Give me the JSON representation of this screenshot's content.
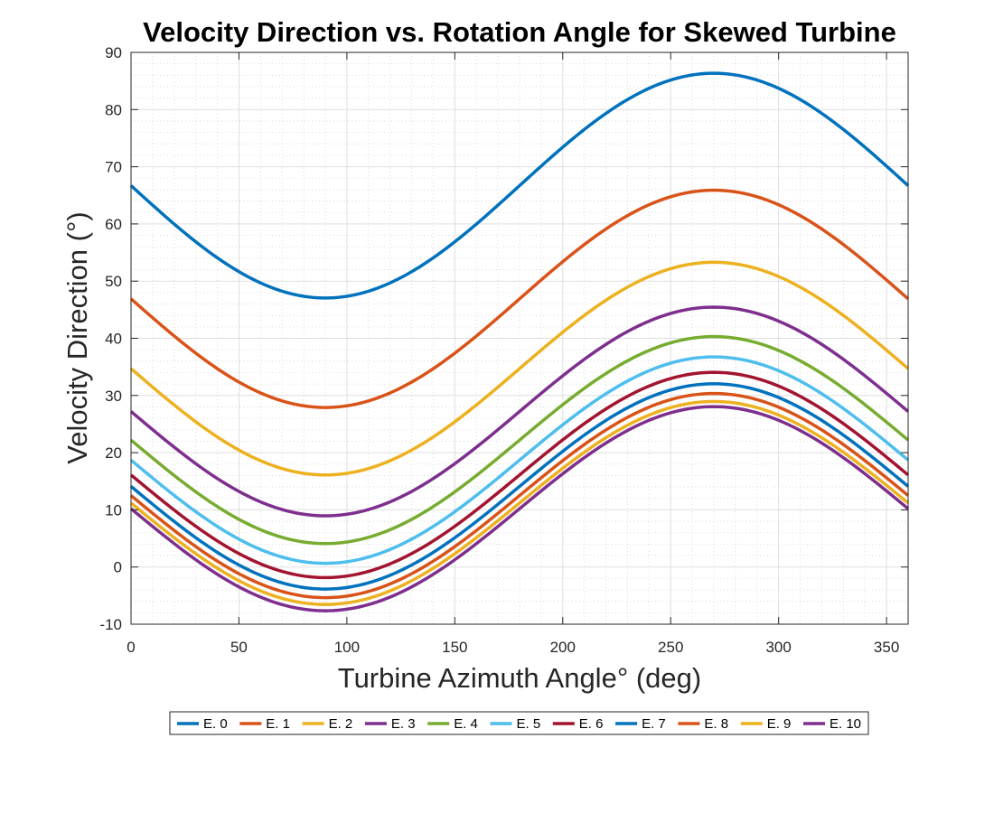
{
  "chart_data": {
    "type": "line",
    "title": "Velocity Direction vs. Rotation Angle for Skewed Turbine",
    "xlabel": "Turbine Azimuth Angle° (deg)",
    "ylabel": "Velocity Direction (°)",
    "xlim": [
      0,
      360
    ],
    "ylim": [
      -10,
      90
    ],
    "xticks": [
      0,
      50,
      100,
      150,
      200,
      250,
      300,
      350
    ],
    "yticks": [
      -10,
      0,
      10,
      20,
      30,
      40,
      50,
      60,
      70,
      80,
      90
    ],
    "grid": true,
    "minor_grid": true,
    "legend_position": "bottom-outside",
    "x": [
      0,
      90,
      180,
      270,
      360
    ],
    "series": [
      {
        "name": "E. 0",
        "color": "#0072BD",
        "values": [
          66.7,
          47.1,
          66.7,
          86.4,
          66.7
        ]
      },
      {
        "name": "E. 1",
        "color": "#D95319",
        "values": [
          46.9,
          27.9,
          46.9,
          65.9,
          46.9
        ]
      },
      {
        "name": "E. 2",
        "color": "#EDB120",
        "values": [
          34.7,
          16.1,
          34.7,
          53.3,
          34.7
        ]
      },
      {
        "name": "E. 3",
        "color": "#7E2F8E",
        "values": [
          27.2,
          8.9,
          27.2,
          45.4,
          27.2
        ]
      },
      {
        "name": "E. 4",
        "color": "#77AC30",
        "values": [
          22.2,
          4.1,
          22.2,
          40.3,
          22.2
        ]
      },
      {
        "name": "E. 5",
        "color": "#4DBEEE",
        "values": [
          18.7,
          0.6,
          18.7,
          36.7,
          18.7
        ]
      },
      {
        "name": "E. 6",
        "color": "#A2142F",
        "values": [
          16.1,
          -1.9,
          16.1,
          34.0,
          16.1
        ]
      },
      {
        "name": "E. 7",
        "color": "#0072BD",
        "values": [
          14.1,
          -3.8,
          14.1,
          32.1,
          14.1
        ]
      },
      {
        "name": "E. 8",
        "color": "#D95319",
        "values": [
          12.5,
          -5.3,
          12.5,
          30.4,
          12.5
        ]
      },
      {
        "name": "E. 9",
        "color": "#EDB120",
        "values": [
          11.2,
          -6.5,
          11.2,
          29.0,
          11.2
        ]
      },
      {
        "name": "E. 10",
        "color": "#7E2F8E",
        "values": [
          10.2,
          -7.6,
          10.2,
          28.1,
          10.2
        ]
      }
    ]
  }
}
